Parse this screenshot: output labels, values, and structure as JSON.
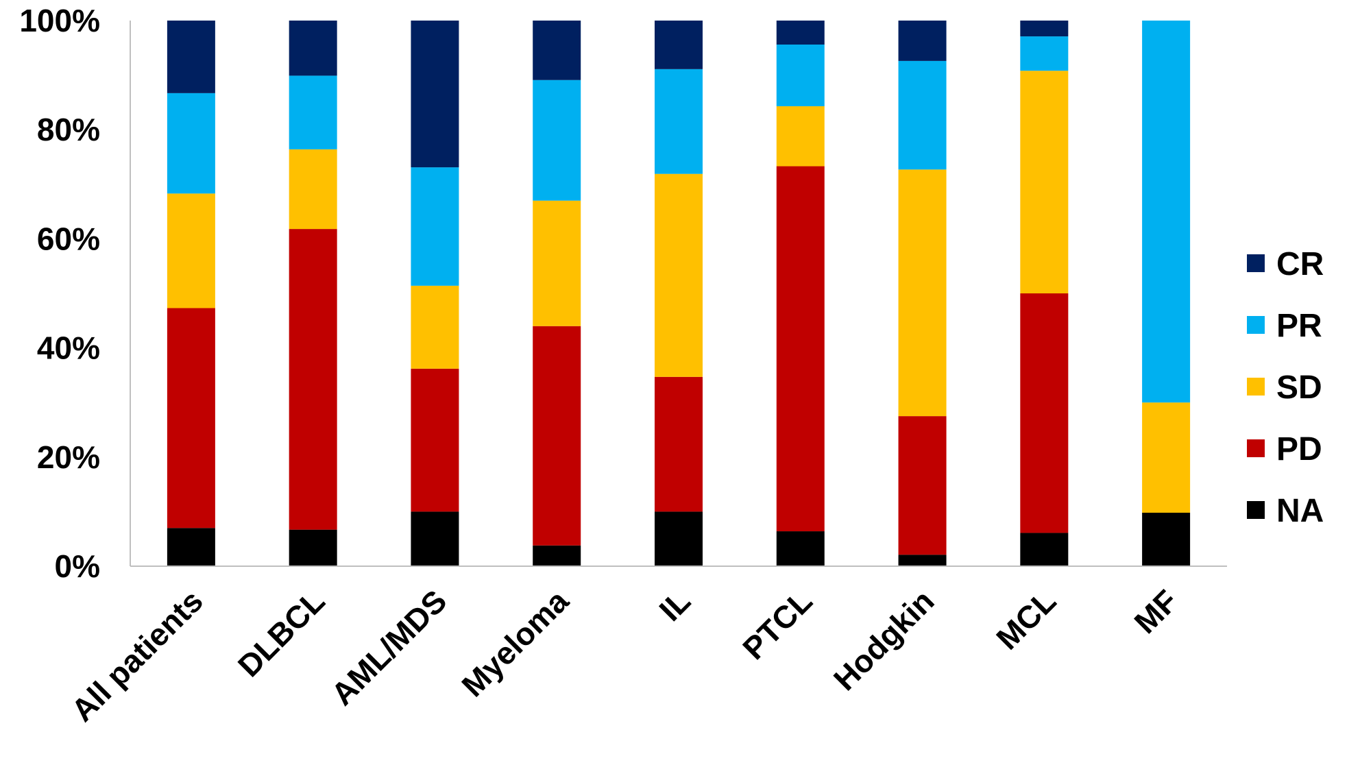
{
  "chart_data": {
    "type": "bar",
    "stacked": true,
    "percent": true,
    "categories": [
      "All patients",
      "DLBCL",
      "AML/MDS",
      "Myeloma",
      "IL",
      "PTCL",
      "Hodgkin",
      "MCL",
      "MF"
    ],
    "series": [
      {
        "name": "NA",
        "color": "#000000",
        "values": [
          7,
          6.7,
          10,
          3.8,
          10,
          6.4,
          2.1,
          6.1,
          9.8
        ]
      },
      {
        "name": "PD",
        "color": "#C00000",
        "values": [
          40.3,
          55.1,
          26.2,
          40.2,
          24.7,
          66.9,
          25.4,
          43.9,
          0
        ]
      },
      {
        "name": "SD",
        "color": "#FFC000",
        "values": [
          21,
          14.6,
          15.2,
          23,
          37.2,
          11,
          45.2,
          40.8,
          20.2
        ]
      },
      {
        "name": "PR",
        "color": "#00B0F0",
        "values": [
          18.4,
          13.5,
          21.7,
          22.1,
          19.2,
          11.3,
          19.9,
          6.3,
          70
        ]
      },
      {
        "name": "CR",
        "color": "#002060",
        "values": [
          13.3,
          10.1,
          26.9,
          10.9,
          8.9,
          4.4,
          7.4,
          2.9,
          0
        ]
      }
    ],
    "legend_order": [
      "CR",
      "PR",
      "SD",
      "PD",
      "NA"
    ],
    "ylim": [
      0,
      100
    ],
    "yticks": [
      "0%",
      "20%",
      "40%",
      "60%",
      "80%",
      "100%"
    ],
    "grid": false,
    "legend_position": "right",
    "title": "",
    "xlabel": "",
    "ylabel": ""
  }
}
